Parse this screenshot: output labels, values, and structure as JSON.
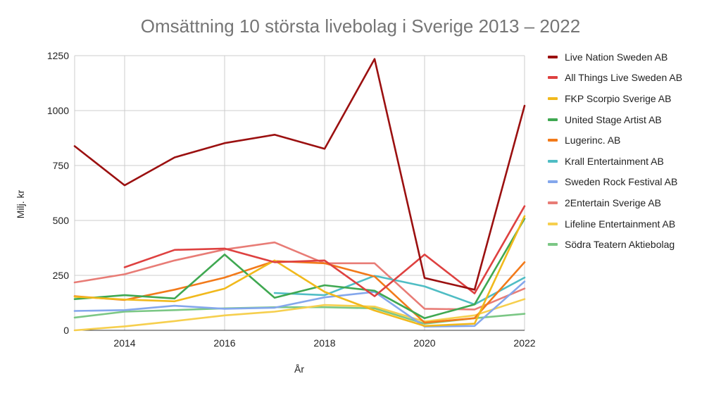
{
  "chart_data": {
    "type": "line",
    "title": "Omsättning 10 största livebolag i Sverige 2013 – 2022",
    "xlabel": "År",
    "ylabel": "Milj. kr",
    "x": [
      2013,
      2014,
      2015,
      2016,
      2017,
      2018,
      2019,
      2020,
      2021,
      2022
    ],
    "xlim": [
      2013,
      2022
    ],
    "ylim": [
      0,
      1250
    ],
    "x_ticks": [
      "2014",
      "2016",
      "2018",
      "2020",
      "2022"
    ],
    "y_ticks": [
      "0",
      "250",
      "500",
      "750",
      "1000",
      "1250"
    ],
    "grid": true,
    "legend_position": "right",
    "series": [
      {
        "name": "Live Nation Sweden AB",
        "color": "#9b1010",
        "values": [
          838,
          660,
          787,
          852,
          890,
          826,
          1235,
          238,
          185,
          1022
        ]
      },
      {
        "name": "All Things Live Sweden AB",
        "color": "#de4140",
        "values": [
          null,
          287,
          366,
          372,
          310,
          318,
          155,
          345,
          168,
          565
        ]
      },
      {
        "name": "FKP Scorpio Sverige AB",
        "color": "#f1b91c",
        "values": [
          153,
          140,
          132,
          190,
          318,
          175,
          90,
          20,
          30,
          520
        ]
      },
      {
        "name": "United Stage Artist AB",
        "color": "#3fa851",
        "values": [
          142,
          160,
          145,
          345,
          148,
          205,
          180,
          55,
          118,
          508
        ]
      },
      {
        "name": "Lugerinc. AB",
        "color": "#f27a1a",
        "values": [
          155,
          138,
          185,
          240,
          315,
          305,
          245,
          35,
          55,
          310
        ]
      },
      {
        "name": "Krall Entertainment AB",
        "color": "#4fbdc4",
        "values": [
          null,
          null,
          null,
          null,
          170,
          160,
          248,
          200,
          118,
          240
        ]
      },
      {
        "name": "Sweden Rock Festival AB",
        "color": "#84a7ec",
        "values": [
          88,
          92,
          112,
          98,
          103,
          150,
          175,
          17,
          20,
          222
        ]
      },
      {
        "name": "2Entertain Sverige AB",
        "color": "#e87c76",
        "values": [
          218,
          255,
          318,
          368,
          400,
          305,
          305,
          98,
          95,
          190
        ]
      },
      {
        "name": "Lifeline Entertainment AB",
        "color": "#f6cf4e",
        "values": [
          0,
          18,
          42,
          68,
          85,
          115,
          108,
          40,
          68,
          142
        ]
      },
      {
        "name": "Södra Teatern Aktiebolag",
        "color": "#7bc785",
        "values": [
          58,
          85,
          92,
          100,
          105,
          105,
          100,
          30,
          55,
          75
        ]
      }
    ]
  }
}
